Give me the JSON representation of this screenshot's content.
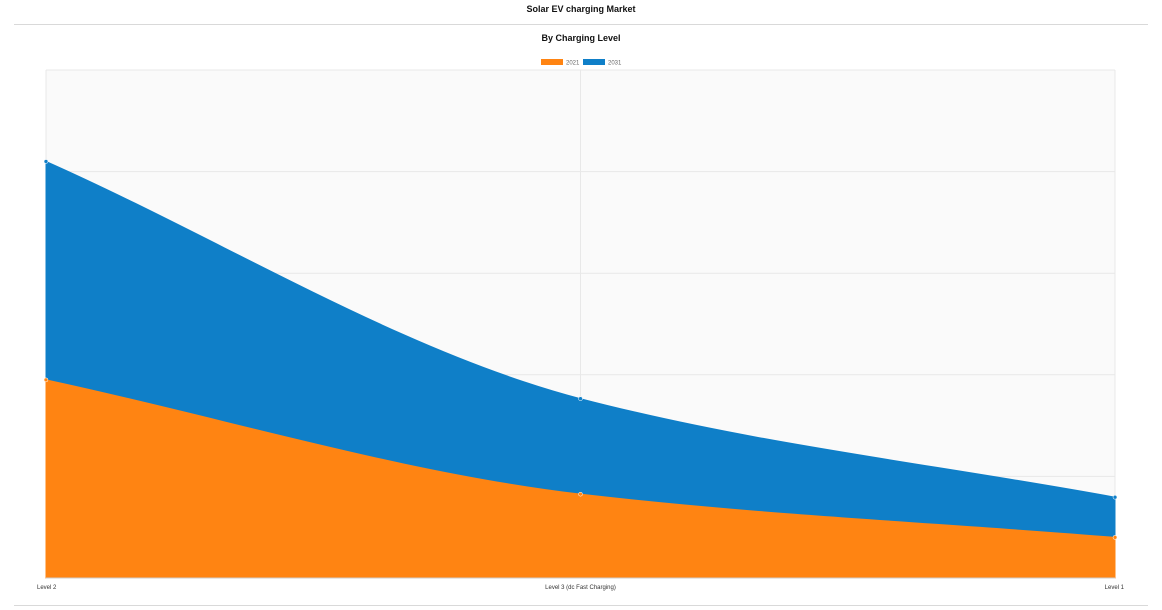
{
  "page": {
    "title": "Solar EV charging Market"
  },
  "chart_data": {
    "type": "area",
    "stacked": true,
    "title": "By Charging Level",
    "categories": [
      "Level 2",
      "Level 3 (dc Fast Charging)",
      "Level 1"
    ],
    "series": [
      {
        "name": "2021",
        "values": [
          39,
          16.5,
          8
        ],
        "color": "#ff8412"
      },
      {
        "name": "2031",
        "values": [
          43,
          18.8,
          7.9
        ],
        "color": "#0f7fc8"
      }
    ],
    "ylim": [
      0,
      100
    ],
    "legend_position": "top-center",
    "grid": true,
    "y_ticks_visible": false
  }
}
